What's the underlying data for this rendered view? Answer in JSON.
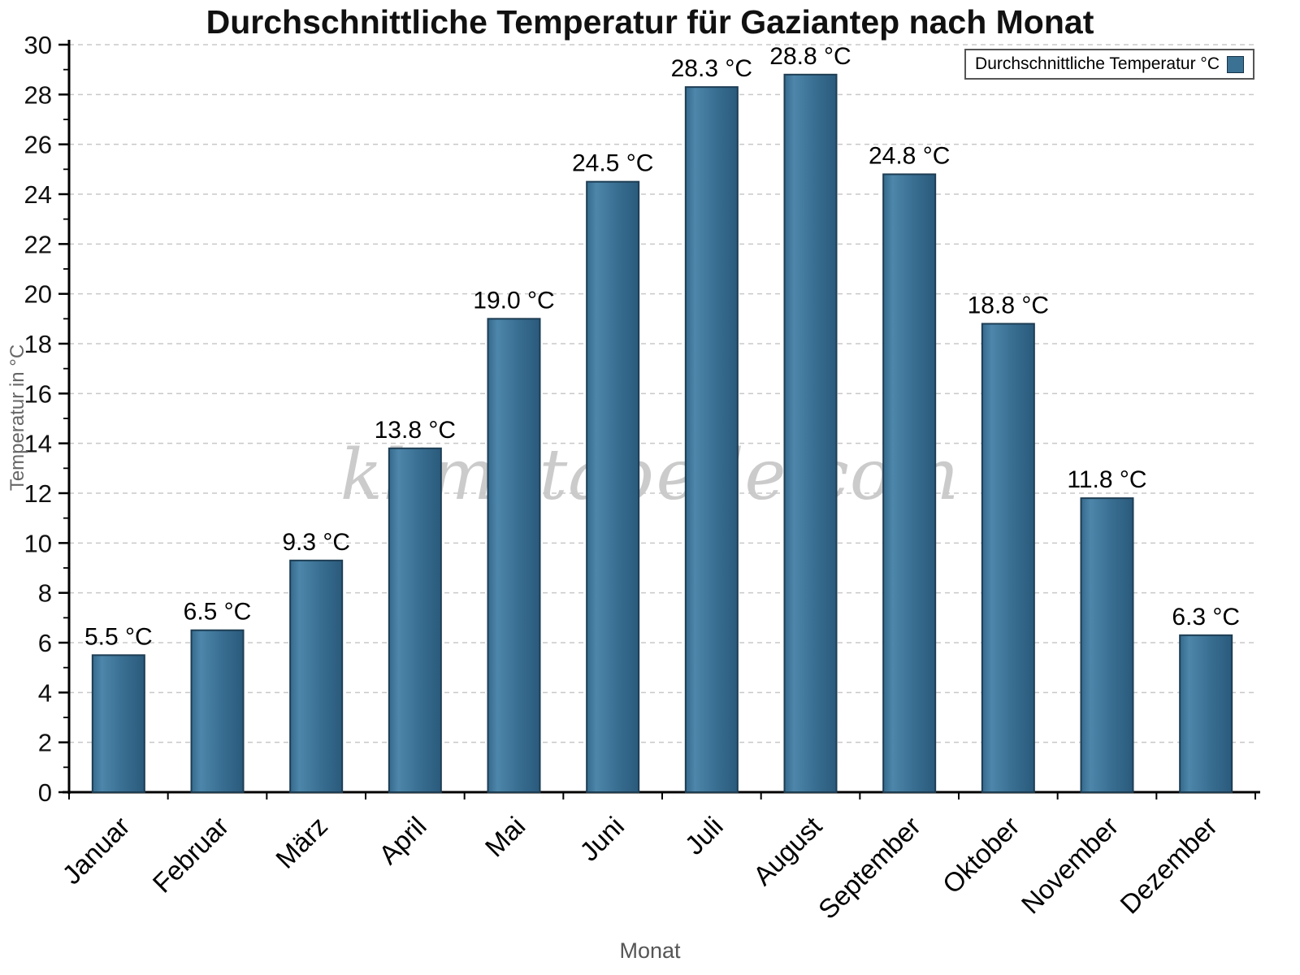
{
  "chart_data": {
    "type": "bar",
    "title": "Durchschnittliche Temperatur für Gaziantep nach Monat",
    "xlabel": "Monat",
    "ylabel": "Temperatur in °C",
    "watermark": "klimatabelle.com",
    "legend": {
      "label": "Durchschnittliche Temperatur °C",
      "position": "top-right"
    },
    "categories": [
      "Januar",
      "Februar",
      "März",
      "April",
      "Mai",
      "Juni",
      "Juli",
      "August",
      "September",
      "Oktober",
      "November",
      "Dezember"
    ],
    "values": [
      5.5,
      6.5,
      9.3,
      13.8,
      19.0,
      24.5,
      28.3,
      28.8,
      24.8,
      18.8,
      11.8,
      6.3
    ],
    "value_labels": [
      "5.5 °C",
      "6.5 °C",
      "9.3 °C",
      "13.8 °C",
      "19.0 °C",
      "24.5 °C",
      "28.3 °C",
      "28.8 °C",
      "24.8 °C",
      "18.8 °C",
      "11.8 °C",
      "6.3 °C"
    ],
    "ylim": [
      0,
      30
    ],
    "ytick_step": 2,
    "grid": true,
    "grid_style": "dashed",
    "grid_color": "#c8c8c8",
    "axis_color": "#000000",
    "bar_color": "#3b7192",
    "bar_edge_color": "#1d3d53",
    "bar_gradient": [
      [
        "0%",
        "#356a8c"
      ],
      [
        "18%",
        "#4d86aa"
      ],
      [
        "55%",
        "#3a7093"
      ],
      [
        "100%",
        "#2a5a7c"
      ]
    ],
    "background_color": "#ffffff"
  }
}
